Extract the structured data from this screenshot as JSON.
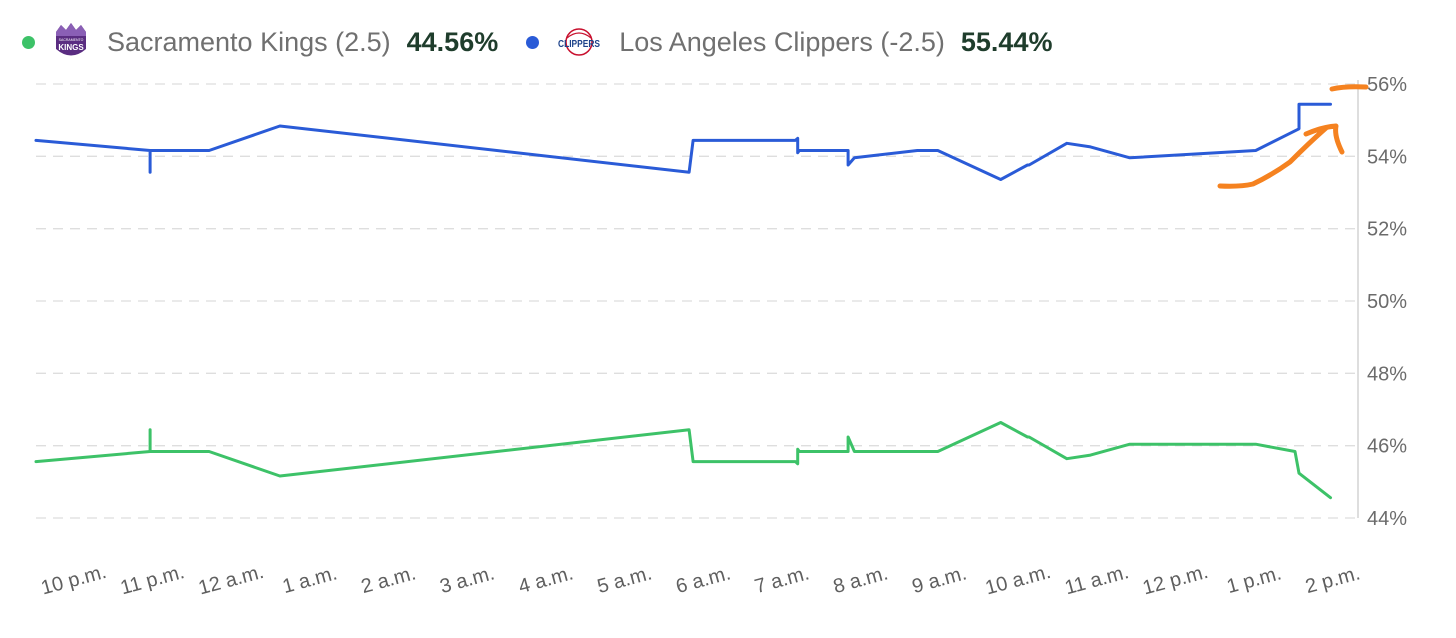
{
  "legend": {
    "kings": {
      "name": "Sacramento Kings (2.5)",
      "pct": "44.56%",
      "color": "#3dc268",
      "logo_text": "KINGS",
      "logo_subtext": "SACRAMENTO"
    },
    "clippers": {
      "name": "Los Angeles Clippers (-2.5)",
      "pct": "55.44%",
      "color": "#2a5bd7",
      "logo_text": "CLIPPERS"
    }
  },
  "annotation": {
    "color": "#f58220",
    "icon": "hand-drawn-arrow-icon"
  },
  "chart_data": {
    "type": "line",
    "title": "",
    "xlabel": "",
    "ylabel": "",
    "x_unit": "hours since 10 p.m.",
    "xlim": [
      -0.5,
      16.3
    ],
    "ylim": [
      44,
      56
    ],
    "y_ticks": [
      {
        "value": 56,
        "label": "56%"
      },
      {
        "value": 54,
        "label": "54%"
      },
      {
        "value": 52,
        "label": "52%"
      },
      {
        "value": 50,
        "label": "50%"
      },
      {
        "value": 48,
        "label": "48%"
      },
      {
        "value": 46,
        "label": "46%"
      },
      {
        "value": 44,
        "label": "44%"
      }
    ],
    "x_ticks": [
      {
        "value": 0,
        "label": "10 p.m."
      },
      {
        "value": 1,
        "label": "11 p.m."
      },
      {
        "value": 2,
        "label": "12 a.m."
      },
      {
        "value": 3,
        "label": "1 a.m."
      },
      {
        "value": 4,
        "label": "2 a.m."
      },
      {
        "value": 5,
        "label": "3 a.m."
      },
      {
        "value": 6,
        "label": "4 a.m."
      },
      {
        "value": 7,
        "label": "5 a.m."
      },
      {
        "value": 8,
        "label": "6 a.m."
      },
      {
        "value": 9,
        "label": "7 a.m."
      },
      {
        "value": 10,
        "label": "8 a.m."
      },
      {
        "value": 11,
        "label": "9 a.m."
      },
      {
        "value": 12,
        "label": "10 a.m."
      },
      {
        "value": 13,
        "label": "11 a.m."
      },
      {
        "value": 14,
        "label": "12 p.m."
      },
      {
        "value": 15,
        "label": "1 p.m."
      },
      {
        "value": 16,
        "label": "2 p.m."
      }
    ],
    "grid": true,
    "series": [
      {
        "name": "Los Angeles Clippers (-2.5)",
        "color": "#2a5bd7",
        "x": [
          -0.5,
          0.95,
          0.95,
          0.95,
          0.95,
          1.7,
          2.6,
          7.8,
          7.85,
          9.15,
          9.18,
          9.18,
          9.2,
          9.82,
          9.82,
          9.9,
          10.7,
          10.96,
          11.76,
          12.1,
          12.12,
          12.6,
          12.9,
          13.4,
          15.0,
          15.55,
          15.55,
          15.95
        ],
        "values": [
          54.44,
          54.16,
          53.56,
          54.16,
          54.16,
          54.16,
          54.84,
          53.56,
          54.44,
          54.44,
          54.5,
          54.1,
          54.16,
          54.16,
          53.76,
          53.96,
          54.16,
          54.16,
          53.36,
          53.76,
          53.76,
          54.36,
          54.26,
          53.96,
          54.16,
          54.76,
          55.44,
          55.44
        ]
      },
      {
        "name": "Sacramento Kings (2.5)",
        "color": "#3dc268",
        "x": [
          -0.5,
          0.95,
          0.95,
          0.95,
          1.7,
          2.6,
          7.8,
          7.85,
          9.15,
          9.18,
          9.18,
          9.2,
          9.82,
          9.82,
          9.9,
          10.7,
          10.96,
          11.76,
          12.1,
          12.12,
          12.6,
          12.9,
          13.4,
          15.0,
          15.5,
          15.55,
          15.95
        ],
        "values": [
          45.56,
          45.84,
          46.44,
          45.84,
          45.84,
          45.16,
          46.44,
          45.56,
          45.56,
          45.5,
          45.9,
          45.84,
          45.84,
          46.24,
          45.84,
          45.84,
          45.84,
          46.64,
          46.24,
          46.24,
          45.64,
          45.74,
          46.04,
          46.04,
          45.84,
          45.24,
          44.56
        ]
      }
    ]
  }
}
